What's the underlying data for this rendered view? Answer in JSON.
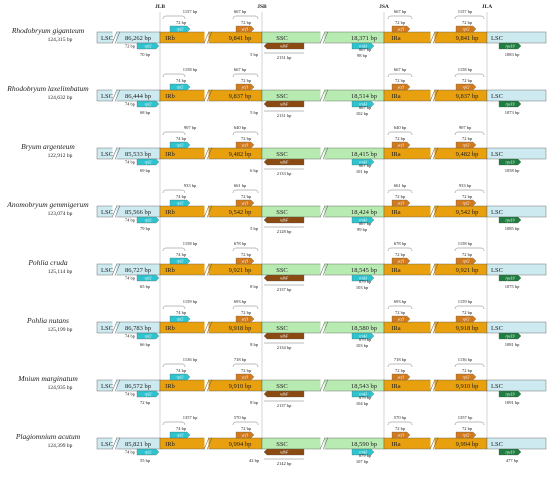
{
  "junctions": [
    "JLB",
    "JSB",
    "JSA",
    "JLA"
  ],
  "regions": {
    "lsc": "LSC",
    "irb": "IRb",
    "ssc": "SSC",
    "ira": "IRa"
  },
  "genes": {
    "rpl2": "rpl2",
    "ycf1": "ycf1",
    "ndhF": "ndhF",
    "trnH": "trnH",
    "rps19": "rps19"
  },
  "colors": {
    "lsc": "#cdeaf0",
    "ir": "#e8a00e",
    "ssc": "#b8ebb1",
    "cyan_gene": "#2ec4cf",
    "orange_gene": "#d27a1e",
    "brown_gene": "#8a4a12",
    "green_gene": "#1f7d40"
  },
  "species": [
    {
      "name": "Rhodobryum giganteum",
      "length": "124,315 bp",
      "lsc_len": "86,262 bp",
      "irb_len": "9,841 bp",
      "ssc_len": "18,371 bp",
      "ira_len": "9,841 bp",
      "a": {
        "top": "1157 bp",
        "bot": "72 bp",
        "below": "70 bp"
      },
      "b": {
        "top": "667 bp",
        "bot": "72 bp",
        "below": "5 bp"
      },
      "c": {
        "below": "2131 bp"
      },
      "d": {
        "bot": "867 bp",
        "below": "98 bp"
      },
      "e": {
        "top": "667 bp",
        "bot": "72 bp"
      },
      "f": {
        "top": "1157 bp",
        "bot": "72 bp"
      },
      "g": {
        "below": "1083 bp"
      }
    },
    {
      "name": "Rhodobryum laxelimbatum",
      "length": "124,632 bp",
      "lsc_len": "86,444 bp",
      "irb_len": "9,837 bp",
      "ssc_len": "18,514 bp",
      "ira_len": "9,837 bp",
      "a": {
        "top": "1158 bp",
        "bot": "74 bp",
        "below": "68 bp"
      },
      "b": {
        "top": "667 bp",
        "bot": "72 bp",
        "below": "5 bp"
      },
      "c": {
        "below": "2131 bp"
      },
      "d": {
        "bot": "867 bp",
        "below": "102 bp"
      },
      "e": {
        "top": "667 bp",
        "bot": "72 bp"
      },
      "f": {
        "top": "1158 bp",
        "bot": "72 bp"
      },
      "g": {
        "below": "1073 bp"
      }
    },
    {
      "name": "Bryum argenteum",
      "length": "122,912 bp",
      "lsc_len": "85,533 bp",
      "irb_len": "9,482 bp",
      "ssc_len": "18,415 bp",
      "ira_len": "9,482 bp",
      "a": {
        "top": "907 bp",
        "bot": "74 bp",
        "below": "69 bp"
      },
      "b": {
        "top": "640 bp",
        "bot": "72 bp",
        "below": "6 bp"
      },
      "c": {
        "below": "2133 bp"
      },
      "d": {
        "bot": "867 bp",
        "below": "101 bp"
      },
      "e": {
        "top": "640 bp",
        "bot": "72 bp"
      },
      "f": {
        "top": "907 bp",
        "bot": "72 bp"
      },
      "g": {
        "below": "1058 bp"
      }
    },
    {
      "name": "Anomobryum gemmigerum",
      "length": "123,074 bp",
      "lsc_len": "85,566 bp",
      "irb_len": "9,542 bp",
      "ssc_len": "18,424 bp",
      "ira_len": "9,542 bp",
      "a": {
        "top": "933 bp",
        "bot": "74 bp",
        "below": "79 bp"
      },
      "b": {
        "top": "661 bp",
        "bot": "72 bp",
        "below": "5 bp"
      },
      "c": {
        "below": "2128 bp"
      },
      "d": {
        "bot": "867 bp",
        "below": "99 bp"
      },
      "e": {
        "top": "661 bp",
        "bot": "72 bp"
      },
      "f": {
        "top": "933 bp",
        "bot": "72 bp"
      },
      "g": {
        "below": "1085 bp"
      }
    },
    {
      "name": "Pohlia cruda",
      "length": "125,114 bp",
      "lsc_len": "86,727 bp",
      "irb_len": "9,921 bp",
      "ssc_len": "18,545 bp",
      "ira_len": "9,921 bp",
      "a": {
        "top": "1158 bp",
        "bot": "74 bp",
        "below": "65 bp"
      },
      "b": {
        "top": "678 bp",
        "bot": "72 bp",
        "below": "8 bp"
      },
      "c": {
        "below": "2137 bp"
      },
      "d": {
        "bot": "879 bp",
        "below": "103 bp"
      },
      "e": {
        "top": "678 bp",
        "bot": "72 bp"
      },
      "f": {
        "top": "1158 bp",
        "bot": "72 bp"
      },
      "g": {
        "below": "1075 bp"
      }
    },
    {
      "name": "Pohlia nutans",
      "length": "125,199 bp",
      "lsc_len": "86,783 bp",
      "irb_len": "9,918 bp",
      "ssc_len": "18,580 bp",
      "ira_len": "9,918 bp",
      "a": {
        "top": "1159 bp",
        "bot": "74 bp",
        "below": "66 bp"
      },
      "b": {
        "top": "693 bp",
        "bot": "72 bp",
        "below": "8 bp"
      },
      "c": {
        "below": "2134 bp"
      },
      "d": {
        "bot": "879 bp",
        "below": "103 bp"
      },
      "e": {
        "top": "693 bp",
        "bot": "72 bp"
      },
      "f": {
        "top": "1159 bp",
        "bot": "72 bp"
      },
      "g": {
        "below": "1081 bp"
      }
    },
    {
      "name": "Mnium marginatum",
      "length": "124,935 bp",
      "lsc_len": "86,572 bp",
      "irb_len": "9,910 bp",
      "ssc_len": "18,543 bp",
      "ira_len": "9,910 bp",
      "a": {
        "top": "1136 bp",
        "bot": "74 bp",
        "below": "72 bp"
      },
      "b": {
        "top": "718 bp",
        "bot": "72 bp",
        "below": "8 bp"
      },
      "c": {
        "below": "2137 bp"
      },
      "d": {
        "bot": "879 bp",
        "below": "104 bp"
      },
      "e": {
        "top": "718 bp",
        "bot": "72 bp"
      },
      "f": {
        "top": "1136 bp",
        "bot": "72 bp"
      },
      "g": {
        "below": "1091 bp"
      }
    },
    {
      "name": "Plagiomnium acutum",
      "length": "124,399 bp",
      "lsc_len": "85,821 bp",
      "irb_len": "9,994 bp",
      "ssc_len": "18,590 bp",
      "ira_len": "9,994 bp",
      "a": {
        "top": "1357 bp",
        "bot": "74 bp",
        "below": "55 bp"
      },
      "b": {
        "top": "570 bp",
        "bot": "72 bp",
        "below": "42 bp"
      },
      "c": {
        "below": "2142 bp"
      },
      "d": {
        "bot": "879 bp",
        "below": "107 bp"
      },
      "e": {
        "top": "570 bp",
        "bot": "72 bp"
      },
      "f": {
        "top": "1357 bp",
        "bot": "72 bp"
      },
      "g": {
        "below": "477 bp"
      }
    }
  ]
}
